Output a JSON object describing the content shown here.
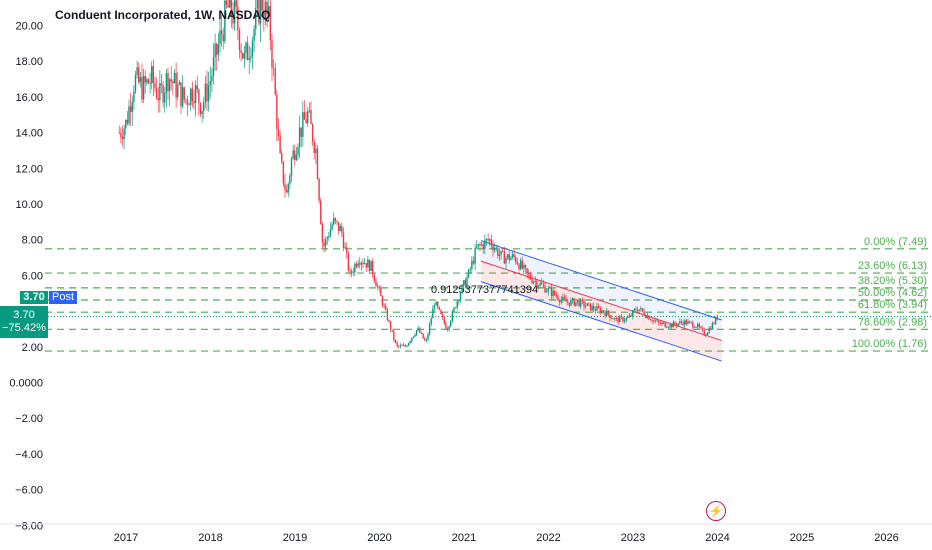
{
  "title": "Conduent Incorporated, 1W, NASDAQ",
  "price_label": "3.70",
  "post_label": "Post",
  "last_price": "3.70",
  "change_pct": "−75.42%",
  "channel_label": "0.9125377377741394",
  "colors": {
    "up": "#089981",
    "down": "#f23645",
    "fib": "#4caf50",
    "channel": "#2962ff",
    "tag": "#089981",
    "post": "#2962ff"
  },
  "icons": {
    "event": "bolt-icon"
  },
  "chart_data": {
    "type": "candlestick",
    "title": "Conduent Incorporated, 1W, NASDAQ",
    "y_ticks": [
      "20.00",
      "18.00",
      "16.00",
      "14.00",
      "12.00",
      "10.00",
      "8.00",
      "6.00",
      "4.00",
      "2.00",
      "0.0000",
      "−2.00",
      "−4.00",
      "−6.00",
      "−8.00"
    ],
    "y_tick_values": [
      20,
      18,
      16,
      14,
      12,
      10,
      8,
      6,
      4,
      2,
      0,
      -2,
      -4,
      -6,
      -8
    ],
    "x_ticks": [
      "2017",
      "2018",
      "2019",
      "2020",
      "2021",
      "2022",
      "2023",
      "2024",
      "2025",
      "2026"
    ],
    "x_tick_values": [
      2017,
      2018,
      2019,
      2020,
      2021,
      2022,
      2023,
      2024,
      2025,
      2026
    ],
    "ylim": [
      -8,
      21.5
    ],
    "xlim": [
      2016.0,
      2026.6
    ],
    "price_path": [
      [
        2016.92,
        14.0
      ],
      [
        2017.0,
        14.5
      ],
      [
        2017.1,
        17.0
      ],
      [
        2017.2,
        16.5
      ],
      [
        2017.3,
        17.0
      ],
      [
        2017.4,
        16.0
      ],
      [
        2017.5,
        17.2
      ],
      [
        2017.6,
        16.5
      ],
      [
        2017.7,
        15.8
      ],
      [
        2017.8,
        16.5
      ],
      [
        2017.9,
        15.5
      ],
      [
        2018.0,
        17.0
      ],
      [
        2018.1,
        19.0
      ],
      [
        2018.2,
        21.0
      ],
      [
        2018.3,
        20.5
      ],
      [
        2018.4,
        18.0
      ],
      [
        2018.5,
        19.5
      ],
      [
        2018.6,
        21.5
      ],
      [
        2018.7,
        20.0
      ],
      [
        2018.75,
        17.0
      ],
      [
        2018.82,
        12.5
      ],
      [
        2018.9,
        10.5
      ],
      [
        2018.96,
        12.5
      ],
      [
        2019.05,
        14.0
      ],
      [
        2019.15,
        15.0
      ],
      [
        2019.25,
        13.0
      ],
      [
        2019.33,
        7.5
      ],
      [
        2019.45,
        9.0
      ],
      [
        2019.55,
        8.5
      ],
      [
        2019.65,
        6.0
      ],
      [
        2019.75,
        7.0
      ],
      [
        2019.9,
        6.5
      ],
      [
        2020.0,
        5.0
      ],
      [
        2020.1,
        3.5
      ],
      [
        2020.2,
        2.0
      ],
      [
        2020.3,
        2.0
      ],
      [
        2020.45,
        3.0
      ],
      [
        2020.55,
        2.2
      ],
      [
        2020.65,
        4.5
      ],
      [
        2020.8,
        3.0
      ],
      [
        2020.95,
        5.0
      ],
      [
        2021.05,
        6.0
      ],
      [
        2021.15,
        7.5
      ],
      [
        2021.3,
        8.0
      ],
      [
        2021.45,
        7.0
      ],
      [
        2021.6,
        7.0
      ],
      [
        2021.75,
        6.0
      ],
      [
        2021.9,
        5.5
      ],
      [
        2022.05,
        5.0
      ],
      [
        2022.2,
        4.5
      ],
      [
        2022.35,
        4.5
      ],
      [
        2022.5,
        4.2
      ],
      [
        2022.65,
        4.0
      ],
      [
        2022.8,
        3.5
      ],
      [
        2022.95,
        3.6
      ],
      [
        2023.05,
        4.2
      ],
      [
        2023.15,
        3.8
      ],
      [
        2023.3,
        3.3
      ],
      [
        2023.45,
        3.2
      ],
      [
        2023.6,
        3.4
      ],
      [
        2023.75,
        3.2
      ],
      [
        2023.85,
        2.7
      ],
      [
        2023.95,
        3.3
      ],
      [
        2024.0,
        3.7
      ]
    ],
    "fibonacci": [
      {
        "label": "0.00% (7.49)",
        "value": 7.49
      },
      {
        "label": "23.60% (6.13)",
        "value": 6.13
      },
      {
        "label": "38.20% (5.30)",
        "value": 5.3
      },
      {
        "label": "50.00% (4.62)",
        "value": 4.62
      },
      {
        "label": "61.80% (3.94)",
        "value": 3.94
      },
      {
        "label": "78.60% (2.98)",
        "value": 2.98
      },
      {
        "label": "100.00% (1.76)",
        "value": 1.76
      }
    ],
    "regression_channel": {
      "start": [
        2021.2,
        6.8
      ],
      "end": [
        2024.05,
        2.35
      ],
      "upper_offset": 1.15,
      "lower_offset": 1.15,
      "coefficient": "0.9125377377741394"
    },
    "last_price": 3.7
  }
}
